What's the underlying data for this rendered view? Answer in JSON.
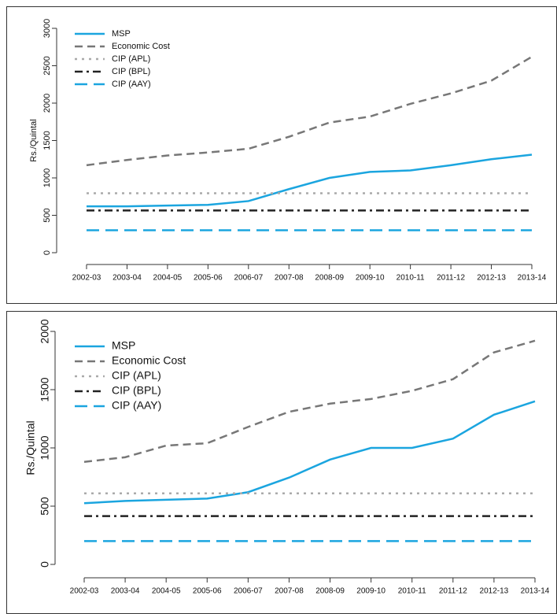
{
  "chart_data": [
    {
      "type": "line",
      "y_label": "Rs./Quintal",
      "categories": [
        "2002-03",
        "2003-04",
        "2004-05",
        "2005-06",
        "2006-07",
        "2007-08",
        "2008-09",
        "2009-10",
        "2010-11",
        "2011-12",
        "2012-13",
        "2013-14"
      ],
      "ylim": [
        0,
        3000
      ],
      "yticks": [
        0,
        500,
        1000,
        1500,
        2000,
        2500,
        3000
      ],
      "legend": "top-left",
      "series": [
        {
          "name": "MSP",
          "color": "#1ba5df",
          "dash": "solid",
          "values": [
            620,
            620,
            630,
            640,
            690,
            850,
            1000,
            1080,
            1100,
            1170,
            1250,
            1310
          ]
        },
        {
          "name": "Economic Cost",
          "color": "#777777",
          "dash": "dashed",
          "values": [
            1170,
            1240,
            1300,
            1340,
            1390,
            1550,
            1740,
            1820,
            1990,
            2130,
            2300,
            2620
          ]
        },
        {
          "name": "CIP (APL)",
          "color": "#aaaaaa",
          "dash": "dotted",
          "values": [
            795,
            795,
            795,
            795,
            795,
            795,
            795,
            795,
            795,
            795,
            795,
            795
          ]
        },
        {
          "name": "CIP (BPL)",
          "color": "#222222",
          "dash": "dashdot",
          "values": [
            565,
            565,
            565,
            565,
            565,
            565,
            565,
            565,
            565,
            565,
            565,
            565
          ]
        },
        {
          "name": "CIP (AAY)",
          "color": "#1ba5df",
          "dash": "longdash",
          "values": [
            300,
            300,
            300,
            300,
            300,
            300,
            300,
            300,
            300,
            300,
            300,
            300
          ]
        }
      ]
    },
    {
      "type": "line",
      "y_label": "Rs./Quintal",
      "categories": [
        "2002-03",
        "2003-04",
        "2004-05",
        "2005-06",
        "2006-07",
        "2007-08",
        "2008-09",
        "2009-10",
        "2010-11",
        "2011-12",
        "2012-13",
        "2013-14"
      ],
      "ylim": [
        0,
        2000
      ],
      "yticks": [
        0,
        500,
        1000,
        1500,
        2000
      ],
      "legend": "top-left",
      "series": [
        {
          "name": "MSP",
          "color": "#1ba5df",
          "dash": "solid",
          "values": [
            525,
            545,
            555,
            565,
            620,
            745,
            900,
            1000,
            1000,
            1080,
            1285,
            1400
          ]
        },
        {
          "name": "Economic Cost",
          "color": "#777777",
          "dash": "dashed",
          "values": [
            880,
            920,
            1020,
            1040,
            1180,
            1310,
            1380,
            1420,
            1490,
            1590,
            1820,
            1920
          ]
        },
        {
          "name": "CIP (APL)",
          "color": "#aaaaaa",
          "dash": "dotted",
          "values": [
            610,
            610,
            610,
            610,
            610,
            610,
            610,
            610,
            610,
            610,
            610,
            610
          ]
        },
        {
          "name": "CIP (BPL)",
          "color": "#222222",
          "dash": "dashdot",
          "values": [
            415,
            415,
            415,
            415,
            415,
            415,
            415,
            415,
            415,
            415,
            415,
            415
          ]
        },
        {
          "name": "CIP (AAY)",
          "color": "#1ba5df",
          "dash": "longdash",
          "values": [
            200,
            200,
            200,
            200,
            200,
            200,
            200,
            200,
            200,
            200,
            200,
            200
          ]
        }
      ]
    }
  ]
}
